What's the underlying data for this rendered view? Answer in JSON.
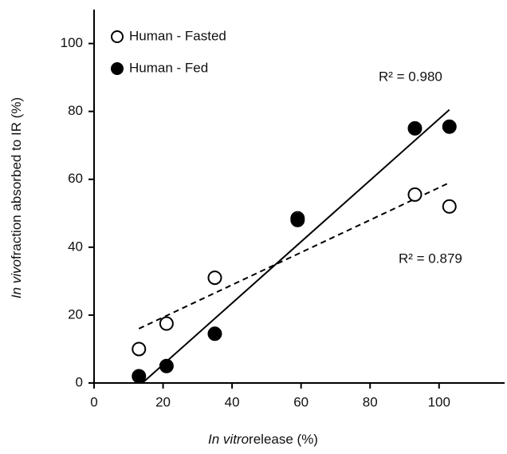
{
  "chart_data": {
    "type": "scatter",
    "xlabel": [
      "In vitro",
      "release (%)"
    ],
    "ylabel": [
      "In vivo",
      "fraction absorbed to IR (%)"
    ],
    "xlim": [
      0,
      119
    ],
    "xticks": [
      0,
      20,
      40,
      60,
      80,
      100
    ],
    "ylim": [
      0,
      110
    ],
    "yticks": [
      0,
      20,
      40,
      60,
      80,
      100
    ],
    "legend": "upper left",
    "series": [
      {
        "name": "Human - Fasted",
        "color": "#000000",
        "filled": false,
        "x": [
          13,
          21,
          35,
          59,
          93,
          103
        ],
        "values": [
          10,
          17.5,
          31,
          48.5,
          55.5,
          52
        ],
        "trendline": {
          "x": [
            13,
            103
          ],
          "y": [
            16,
            59
          ],
          "dash": true,
          "label": "R² = 0.879"
        }
      },
      {
        "name": "Human - Fed",
        "color": "#000000",
        "filled": true,
        "x": [
          13,
          21,
          35,
          59,
          93,
          103
        ],
        "values": [
          2,
          5,
          14.5,
          48,
          75,
          75.5
        ],
        "trendline": {
          "x": [
            14,
            103
          ],
          "y": [
            0,
            80.5
          ],
          "dash": false,
          "label": "R² = 0.980"
        }
      }
    ]
  }
}
